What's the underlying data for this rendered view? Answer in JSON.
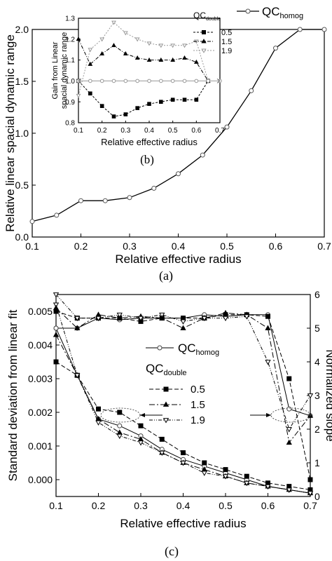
{
  "panels": {
    "a": {
      "caption": "(a)"
    },
    "b": {
      "caption": "(b)"
    },
    "c": {
      "caption": "(c)"
    }
  },
  "chart_data": [
    {
      "id": "a",
      "type": "line",
      "xlabel": "Relative effective radius",
      "ylabel": "Relative linear spacial dynamic range",
      "xlim": [
        0.1,
        0.7
      ],
      "ylim": [
        0.0,
        2.0
      ],
      "xticks": [
        "0.1",
        "0.2",
        "0.3",
        "0.4",
        "0.5",
        "0.6",
        "0.7"
      ],
      "yticks": [
        "0.0",
        "0.5",
        "1.0",
        "1.5",
        "2.0"
      ],
      "legend": {
        "placement": "top-right",
        "base": "QC",
        "sub": "homog"
      },
      "series": [
        {
          "name": "QC_homog",
          "x": [
            0.1,
            0.15,
            0.2,
            0.25,
            0.3,
            0.35,
            0.4,
            0.45,
            0.5,
            0.55,
            0.6,
            0.65,
            0.7
          ],
          "y": [
            0.15,
            0.21,
            0.35,
            0.35,
            0.38,
            0.47,
            0.61,
            0.79,
            1.06,
            1.41,
            1.82,
            2.0,
            2.0
          ]
        }
      ]
    },
    {
      "id": "b",
      "type": "line",
      "inset_of": "a",
      "xlabel": "Relative effective radius",
      "ylabel_lines": [
        "Gain from Linear",
        "spacial dynamic range"
      ],
      "xlim": [
        0.1,
        0.7
      ],
      "ylim": [
        0.8,
        1.3
      ],
      "xticks": [
        "0.1",
        "0.2",
        "0.3",
        "0.4",
        "0.5",
        "0.6",
        "0.7"
      ],
      "yticks": [
        "0.8",
        "0.9",
        "1.0",
        "1.1",
        "1.2",
        "1.3"
      ],
      "legend": {
        "placement": "right",
        "base": "QC",
        "sub": "double"
      },
      "series": [
        {
          "name": "0.5",
          "marker": "square",
          "color": "#000000",
          "x": [
            0.1,
            0.15,
            0.2,
            0.25,
            0.3,
            0.35,
            0.4,
            0.45,
            0.5,
            0.55,
            0.6,
            0.65
          ],
          "y": [
            1.0,
            0.94,
            0.88,
            0.83,
            0.84,
            0.87,
            0.89,
            0.9,
            0.91,
            0.91,
            0.91,
            1.0
          ]
        },
        {
          "name": "1.5",
          "marker": "triangle-up",
          "color": "#000000",
          "x": [
            0.1,
            0.15,
            0.2,
            0.25,
            0.3,
            0.35,
            0.4,
            0.45,
            0.5,
            0.55,
            0.6,
            0.65
          ],
          "y": [
            1.2,
            1.08,
            1.13,
            1.17,
            1.13,
            1.11,
            1.1,
            1.1,
            1.1,
            1.11,
            1.09,
            1.0
          ]
        },
        {
          "name": "1.9",
          "marker": "triangle-down",
          "color": "#999999",
          "x": [
            0.1,
            0.15,
            0.2,
            0.25,
            0.3,
            0.35,
            0.4,
            0.45,
            0.5,
            0.55,
            0.6,
            0.65
          ],
          "y": [
            0.93,
            1.15,
            1.2,
            1.28,
            1.23,
            1.2,
            1.18,
            1.17,
            1.17,
            1.17,
            1.19,
            1.0
          ]
        },
        {
          "name": "QC_homog",
          "marker": "circle",
          "color": "#999999",
          "x": [
            0.1,
            0.15,
            0.2,
            0.25,
            0.3,
            0.35,
            0.4,
            0.45,
            0.5,
            0.55,
            0.6,
            0.65,
            0.7
          ],
          "y": [
            1.0,
            1.0,
            1.0,
            1.0,
            1.0,
            1.0,
            1.0,
            1.0,
            1.0,
            1.0,
            1.0,
            1.0,
            1.0
          ]
        }
      ]
    },
    {
      "id": "c",
      "type": "line",
      "xlabel": "Relative effective radius",
      "ylabel": "Standard deviation from linear fit",
      "y2label": "Normalized slope",
      "xlim": [
        0.1,
        0.7
      ],
      "ylim": [
        -0.0005,
        0.0055
      ],
      "y2lim": [
        0,
        6
      ],
      "xticks": [
        "0.1",
        "0.2",
        "0.3",
        "0.4",
        "0.5",
        "0.6",
        "0.7"
      ],
      "yticks": [
        "0.000",
        "0.001",
        "0.002",
        "0.003",
        "0.004",
        "0.005"
      ],
      "y2ticks": [
        "0",
        "1",
        "2",
        "3",
        "4",
        "5",
        "6"
      ],
      "legend": {
        "placement": "center",
        "homog_base": "QC",
        "homog_sub": "homog",
        "double_base": "QC",
        "double_sub": "double"
      },
      "series": [
        {
          "name": "QC_homog",
          "axis": "left",
          "marker": "circle",
          "x": [
            0.1,
            0.15,
            0.2,
            0.25,
            0.3,
            0.35,
            0.4,
            0.45,
            0.5,
            0.55,
            0.6,
            0.65,
            0.7
          ],
          "y": [
            0.0045,
            0.0031,
            0.0018,
            0.0016,
            0.0013,
            0.0009,
            0.0006,
            0.0004,
            0.0002,
            0.0,
            -0.0002,
            -0.0003,
            -0.0004
          ]
        },
        {
          "name": "0.5",
          "axis": "left",
          "marker": "square",
          "x": [
            0.1,
            0.15,
            0.2,
            0.25,
            0.3,
            0.35,
            0.4,
            0.45,
            0.5,
            0.55,
            0.6,
            0.65,
            0.7
          ],
          "y": [
            0.0035,
            0.0031,
            0.0021,
            0.002,
            0.0016,
            0.0012,
            0.0008,
            0.0005,
            0.0003,
            0.0001,
            -0.0001,
            -0.0002,
            -0.0003
          ]
        },
        {
          "name": "1.5",
          "axis": "left",
          "marker": "triangle-up",
          "x": [
            0.1,
            0.15,
            0.2,
            0.25,
            0.3,
            0.35,
            0.4,
            0.45,
            0.5,
            0.55,
            0.6,
            0.65,
            0.7
          ],
          "y": [
            0.0043,
            0.0031,
            0.0018,
            0.0014,
            0.0012,
            0.0008,
            0.0005,
            0.0003,
            0.0001,
            -0.0001,
            -0.0002,
            -0.0003,
            -0.0004
          ]
        },
        {
          "name": "1.9",
          "axis": "left",
          "marker": "triangle-down",
          "x": [
            0.1,
            0.15,
            0.2,
            0.25,
            0.3,
            0.35,
            0.4,
            0.45,
            0.5,
            0.55,
            0.6,
            0.65,
            0.7
          ],
          "y": [
            0.0052,
            0.0031,
            0.0017,
            0.0013,
            0.0011,
            0.0008,
            0.0005,
            0.0002,
            0.0001,
            -0.0001,
            -0.0002,
            -0.0003,
            -0.0004
          ]
        },
        {
          "name": "QC_homog",
          "axis": "right",
          "marker": "circle",
          "x": [
            0.1,
            0.15,
            0.2,
            0.25,
            0.3,
            0.35,
            0.4,
            0.45,
            0.5,
            0.55,
            0.6,
            0.65,
            0.7
          ],
          "y": [
            5.0,
            5.0,
            5.3,
            5.25,
            5.3,
            5.3,
            5.3,
            5.4,
            5.35,
            5.4,
            5.4,
            2.6,
            2.4
          ]
        },
        {
          "name": "0.5",
          "axis": "right",
          "marker": "square",
          "x": [
            0.1,
            0.15,
            0.2,
            0.25,
            0.3,
            0.35,
            0.4,
            0.45,
            0.5,
            0.55,
            0.6,
            0.65,
            0.7
          ],
          "y": [
            5.5,
            5.3,
            5.3,
            5.3,
            5.2,
            5.3,
            5.3,
            5.3,
            5.4,
            5.4,
            5.35,
            3.5,
            0.5
          ]
        },
        {
          "name": "1.5",
          "axis": "right",
          "marker": "triangle-up",
          "x": [
            0.1,
            0.15,
            0.2,
            0.25,
            0.3,
            0.35,
            0.4,
            0.45,
            0.5,
            0.55,
            0.6,
            0.65,
            0.7
          ],
          "y": [
            5.6,
            5.0,
            5.4,
            5.3,
            5.35,
            5.3,
            5.0,
            5.3,
            5.45,
            5.4,
            5.0,
            1.6,
            2.4
          ]
        },
        {
          "name": "1.9",
          "axis": "right",
          "marker": "triangle-down",
          "x": [
            0.1,
            0.15,
            0.2,
            0.25,
            0.3,
            0.35,
            0.4,
            0.45,
            0.5,
            0.55,
            0.6,
            0.65,
            0.7
          ],
          "y": [
            6.0,
            5.3,
            5.3,
            5.4,
            5.3,
            5.4,
            5.2,
            5.3,
            5.3,
            5.35,
            4.0,
            2.0,
            3.0
          ]
        }
      ]
    }
  ]
}
